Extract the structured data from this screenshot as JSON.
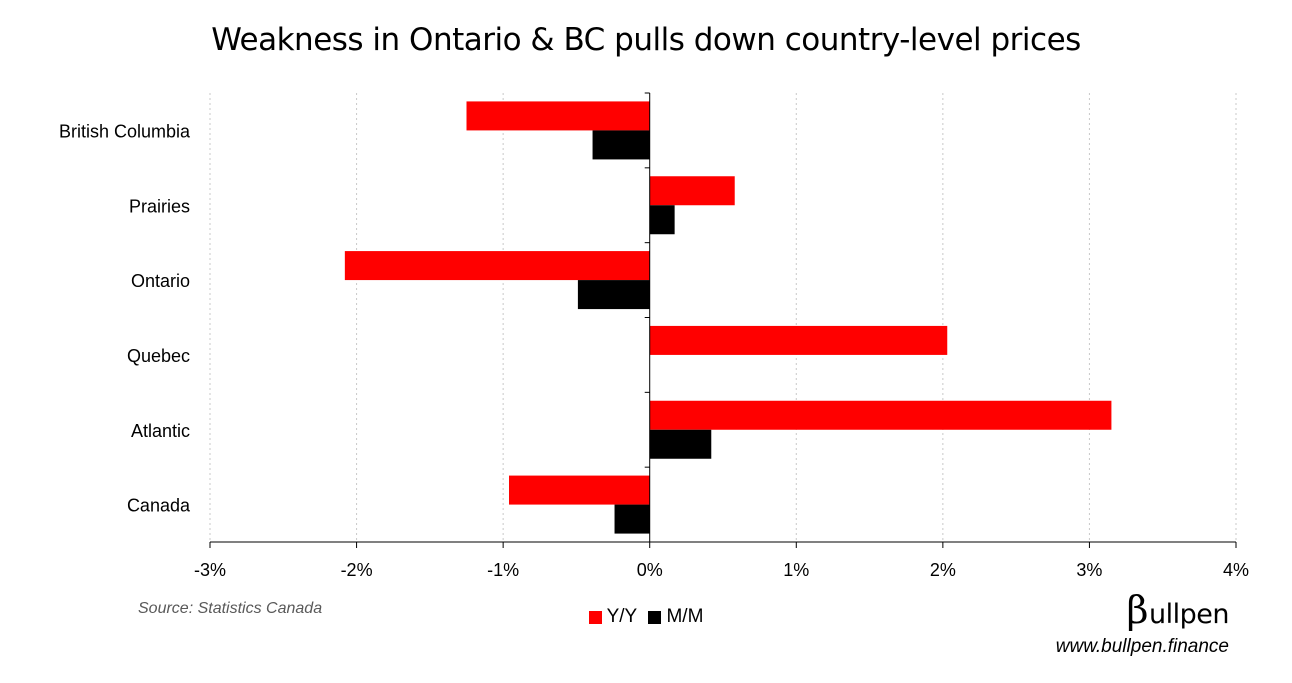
{
  "title": "Weakness in Ontario & BC pulls down country-level prices",
  "source": "Source: Statistics Canada",
  "brand": {
    "beta": "β",
    "rest": "ullpen",
    "url": "www.bullpen.finance"
  },
  "colors": {
    "yy": "#ff0000",
    "mm": "#000000",
    "grid": "#c8c8c8",
    "axis": "#000000"
  },
  "chart_data": {
    "type": "bar",
    "orientation": "horizontal",
    "categories": [
      "British Columbia",
      "Prairies",
      "Ontario",
      "Quebec",
      "Atlantic",
      "Canada"
    ],
    "series": [
      {
        "name": "Y/Y",
        "values": [
          -1.25,
          0.58,
          -2.08,
          2.03,
          3.15,
          -0.96
        ]
      },
      {
        "name": "M/M",
        "values": [
          -0.39,
          0.17,
          -0.49,
          0.0,
          0.42,
          -0.24
        ]
      }
    ],
    "xlim": [
      -3,
      4
    ],
    "xticks": [
      -3,
      -2,
      -1,
      0,
      1,
      2,
      3,
      4
    ],
    "xtick_labels": [
      "-3%",
      "-2%",
      "-1%",
      "0%",
      "1%",
      "2%",
      "3%",
      "4%"
    ],
    "grid": "vertical-dotted",
    "legend": "bottom-center"
  }
}
